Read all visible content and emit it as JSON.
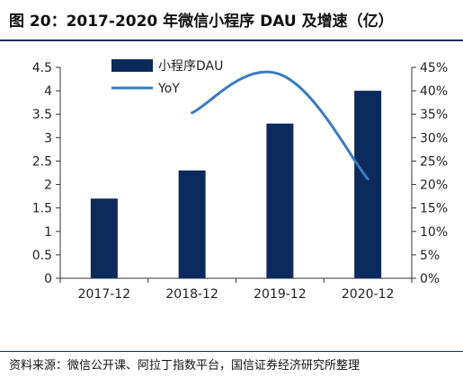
{
  "title": "图 20：2017-2020 年微信小程序 DAU 及增速（亿）",
  "source": "资料来源：微信公开课、阿拉丁指数平台，国信证券经济研究所整理",
  "colors": {
    "bar": "#0d2a5c",
    "line": "#3a7bbf",
    "rule": "#1a2f5a"
  },
  "chart_data": {
    "type": "bar",
    "categories": [
      "2017-12",
      "2018-12",
      "2019-12",
      "2020-12"
    ],
    "series": [
      {
        "name": "小程序DAU",
        "type": "bar",
        "axis": "left",
        "values": [
          1.7,
          2.3,
          3.3,
          4.0
        ]
      },
      {
        "name": "YoY",
        "type": "line",
        "axis": "right",
        "values": [
          null,
          35.3,
          43.5,
          21.2
        ]
      }
    ],
    "y_left": {
      "min": 0,
      "max": 4.5,
      "step": 0.5,
      "ticks": [
        "0",
        "0.5",
        "1",
        "1.5",
        "2",
        "2.5",
        "3",
        "3.5",
        "4",
        "4.5"
      ]
    },
    "y_right": {
      "min": 0,
      "max": 45,
      "step": 5,
      "ticks": [
        "0%",
        "5%",
        "10%",
        "15%",
        "20%",
        "25%",
        "30%",
        "35%",
        "40%",
        "45%"
      ]
    },
    "grid": false,
    "legend": "top-left"
  }
}
